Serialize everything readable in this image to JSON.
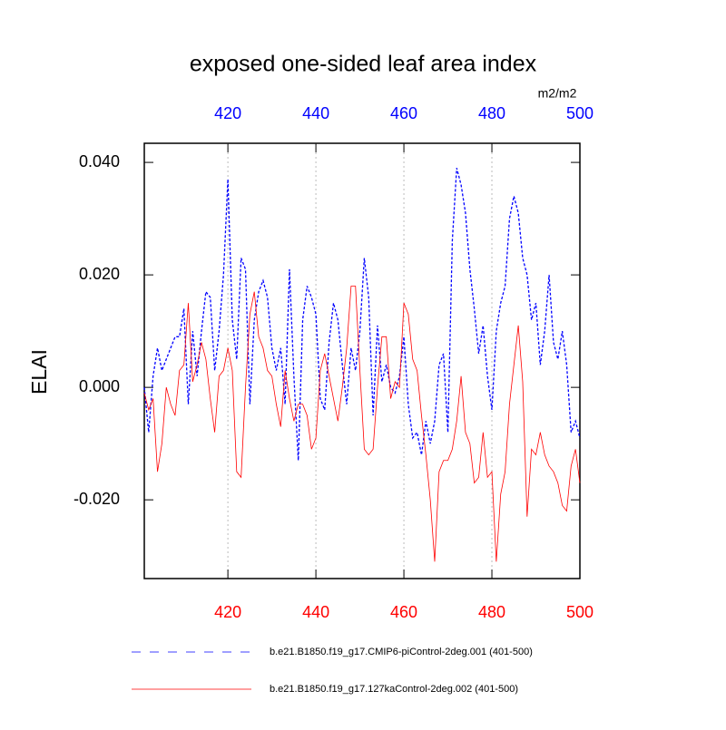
{
  "chart_data": {
    "type": "line",
    "title": "exposed one-sided leaf area index",
    "ylabel": "ELAI",
    "units": "m2/m2",
    "x": [
      401,
      402,
      403,
      404,
      405,
      406,
      407,
      408,
      409,
      410,
      411,
      412,
      413,
      414,
      415,
      416,
      417,
      418,
      419,
      420,
      421,
      422,
      423,
      424,
      425,
      426,
      427,
      428,
      429,
      430,
      431,
      432,
      433,
      434,
      435,
      436,
      437,
      438,
      439,
      440,
      441,
      442,
      443,
      444,
      445,
      446,
      447,
      448,
      449,
      450,
      451,
      452,
      453,
      454,
      455,
      456,
      457,
      458,
      459,
      460,
      461,
      462,
      463,
      464,
      465,
      466,
      467,
      468,
      469,
      470,
      471,
      472,
      473,
      474,
      475,
      476,
      477,
      478,
      479,
      480,
      481,
      482,
      483,
      484,
      485,
      486,
      487,
      488,
      489,
      490,
      491,
      492,
      493,
      494,
      495,
      496,
      497,
      498,
      499,
      500
    ],
    "series": [
      {
        "name": "b.e21.B1850.f19_g17.CMIP6-piControl-2deg.001 (401-500)",
        "color": "#0000ff",
        "dash": true,
        "values": [
          0.0,
          -0.008,
          0.002,
          0.007,
          0.003,
          0.005,
          0.007,
          0.009,
          0.009,
          0.014,
          -0.003,
          0.01,
          0.002,
          0.01,
          0.017,
          0.016,
          0.003,
          0.01,
          0.02,
          0.037,
          0.012,
          0.005,
          0.023,
          0.021,
          -0.003,
          0.012,
          0.017,
          0.019,
          0.016,
          0.007,
          0.003,
          0.007,
          -0.003,
          0.021,
          0.002,
          -0.013,
          0.012,
          0.018,
          0.016,
          0.013,
          -0.002,
          -0.004,
          0.008,
          0.015,
          0.012,
          0.004,
          -0.003,
          0.007,
          0.003,
          0.01,
          0.023,
          0.016,
          -0.005,
          0.011,
          0.001,
          0.004,
          0.0,
          -0.001,
          0.002,
          0.009,
          -0.003,
          -0.009,
          -0.008,
          -0.012,
          -0.006,
          -0.01,
          -0.006,
          0.004,
          0.006,
          -0.008,
          0.026,
          0.039,
          0.036,
          0.031,
          0.021,
          0.014,
          0.006,
          0.011,
          0.002,
          -0.004,
          0.01,
          0.015,
          0.018,
          0.03,
          0.034,
          0.031,
          0.023,
          0.02,
          0.012,
          0.015,
          0.004,
          0.01,
          0.02,
          0.008,
          0.005,
          0.01,
          0.004,
          -0.008,
          -0.006,
          -0.009
        ]
      },
      {
        "name": "b.e21.B1850.f19_g17.127kaControl-2deg.002 (401-500)",
        "color": "#ff0000",
        "dash": false,
        "values": [
          -0.001,
          -0.004,
          -0.002,
          -0.015,
          -0.01,
          0.0,
          -0.003,
          -0.005,
          0.003,
          0.004,
          0.015,
          0.001,
          0.004,
          0.008,
          0.005,
          -0.002,
          -0.008,
          0.002,
          0.003,
          0.007,
          0.003,
          -0.015,
          -0.016,
          0.0,
          0.013,
          0.017,
          0.009,
          0.007,
          0.003,
          0.002,
          -0.003,
          -0.007,
          0.003,
          -0.002,
          -0.006,
          -0.003,
          -0.003,
          -0.005,
          -0.011,
          -0.009,
          0.003,
          0.006,
          0.002,
          -0.002,
          -0.006,
          0.0,
          0.007,
          0.018,
          0.018,
          0.003,
          -0.011,
          -0.012,
          -0.011,
          0.0,
          0.009,
          0.009,
          -0.002,
          0.001,
          0.0,
          0.015,
          0.013,
          0.005,
          0.003,
          -0.005,
          -0.012,
          -0.02,
          -0.031,
          -0.015,
          -0.013,
          -0.013,
          -0.011,
          -0.006,
          0.002,
          -0.008,
          -0.01,
          -0.017,
          -0.016,
          -0.008,
          -0.016,
          -0.015,
          -0.031,
          -0.019,
          -0.015,
          -0.003,
          0.004,
          0.011,
          0.001,
          -0.023,
          -0.011,
          -0.012,
          -0.008,
          -0.012,
          -0.014,
          -0.015,
          -0.017,
          -0.021,
          -0.022,
          -0.014,
          -0.011,
          -0.017
        ]
      }
    ],
    "xlim": [
      401,
      500
    ],
    "xticks": [
      420,
      440,
      460,
      480,
      500
    ],
    "ylim": [
      -0.034,
      0.0434
    ],
    "yticks": [
      {
        "value": -0.02,
        "label": "-0.020"
      },
      {
        "value": 0,
        "label": "0.000"
      },
      {
        "value": 0.02,
        "label": "0.020"
      },
      {
        "value": 0.04,
        "label": "0.040"
      }
    ],
    "grid": true,
    "top_axis_color": "#0000ff",
    "bottom_axis_color": "#ff0000"
  }
}
